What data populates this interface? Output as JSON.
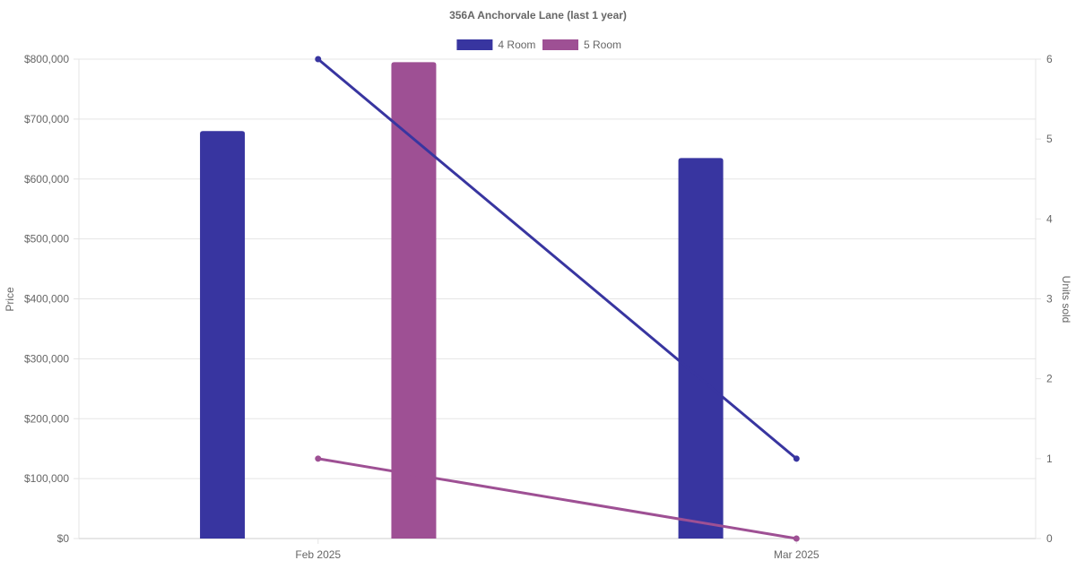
{
  "chart_data": {
    "type": "bar",
    "title": "356A Anchorvale Lane (last 1 year)",
    "categories": [
      "Feb 2025",
      "Mar 2025"
    ],
    "y_left": {
      "label": "Price",
      "range": [
        0,
        800000
      ],
      "ticks": [
        "$0",
        "$100,000",
        "$200,000",
        "$300,000",
        "$400,000",
        "$500,000",
        "$600,000",
        "$700,000",
        "$800,000"
      ]
    },
    "y_right": {
      "label": "Units sold",
      "range": [
        0,
        6
      ],
      "ticks": [
        "0",
        "1",
        "2",
        "3",
        "4",
        "5",
        "6"
      ]
    },
    "legend_position": "top-center",
    "grid": true,
    "series": [
      {
        "name": "4 Room",
        "color": "#3835a0",
        "price": [
          680000,
          635000
        ],
        "units_sold": [
          6,
          1
        ]
      },
      {
        "name": "5 Room",
        "color": "#9e5094",
        "price": [
          795000,
          null
        ],
        "units_sold": [
          1,
          0
        ]
      }
    ]
  }
}
